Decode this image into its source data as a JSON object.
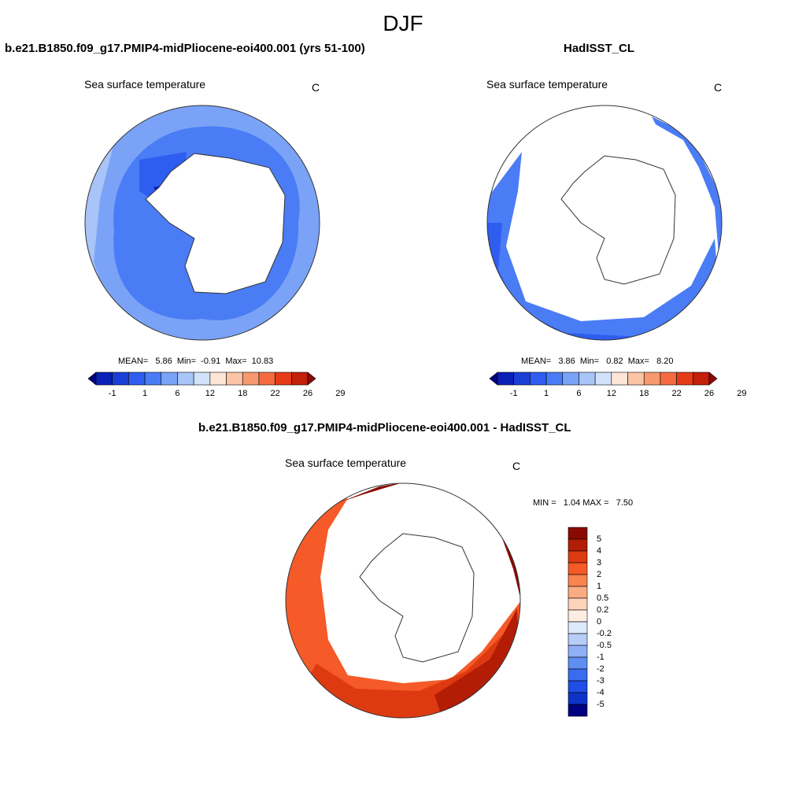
{
  "title": "DJF",
  "panels": [
    {
      "id": "model",
      "title": "b.e21.B1850.f09_g17.PMIP4-midPliocene-eoi400.001 (yrs 51-100)",
      "variable": "Sea surface temperature",
      "units": "C",
      "stats": "MEAN=   5.86  Min=  -0.91  Max=  10.83",
      "colorbar_ticks": [
        "-1",
        "1",
        "6",
        "12",
        "18",
        "22",
        "26",
        "29"
      ]
    },
    {
      "id": "obs",
      "title": "HadISST_CL",
      "variable": "Sea surface temperature",
      "units": "C",
      "stats": "MEAN=   3.86  Min=   0.82  Max=   8.20",
      "colorbar_ticks": [
        "-1",
        "1",
        "6",
        "12",
        "18",
        "22",
        "26",
        "29"
      ]
    },
    {
      "id": "diff",
      "title": "b.e21.B1850.f09_g17.PMIP4-midPliocene-eoi400.001 - HadISST_CL",
      "variable": "Sea surface temperature",
      "units": "C",
      "stats": "MIN =   1.04 MAX =   7.50",
      "colorbar_ticks": [
        "5",
        "4",
        "3",
        "2",
        "1",
        "0.5",
        "0.2",
        "0",
        "-0.2",
        "-0.5",
        "-1",
        "-2",
        "-3",
        "-4",
        "-5"
      ]
    }
  ],
  "colors": {
    "sst_scale": [
      "#000080",
      "#0a1fb5",
      "#1a3fd6",
      "#2e5df0",
      "#4a7cf5",
      "#7aa3f7",
      "#a8c4f8",
      "#d2e2fb",
      "#fde6d7",
      "#fbc4a6",
      "#f7996f",
      "#f36b3f",
      "#e63b17",
      "#c41f08",
      "#8a0a02"
    ],
    "diff_scale": [
      "#8a0a02",
      "#b31d06",
      "#de3a12",
      "#f55a28",
      "#f9844f",
      "#fbab83",
      "#fdd3bb",
      "#fdeee3",
      "#dce8fb",
      "#b6cdf8",
      "#8eb0f5",
      "#5f8ef2",
      "#3a6cf0",
      "#1f4de6",
      "#0e33c8",
      "#000080"
    ],
    "land": "#ffffff",
    "outline": "#333333"
  }
}
